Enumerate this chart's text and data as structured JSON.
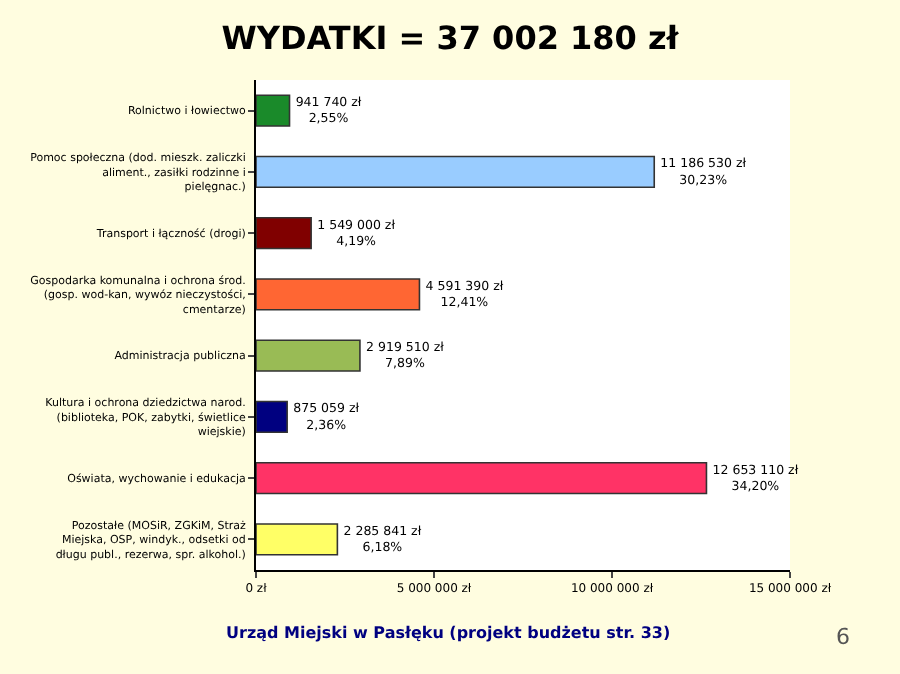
{
  "chart_data": {
    "type": "bar",
    "orientation": "horizontal",
    "title": "WYDATKI = 37 002 180 zł",
    "categories": [
      "Rolnictwo i łowiectwo",
      "Pomoc społeczna (dod. mieszk. zaliczki aliment., zasiłki rodzinne i pielęgnac.)",
      "Transport i łączność (drogi)",
      "Gospodarka komunalna i ochrona środ. (gosp. wod-kan, wywóz nieczystości, cmentarze)",
      "Administracja publiczna",
      "Kultura i ochrona dziedzictwa narod. (biblioteka, POK, zabytki, świetlice wiejskie)",
      "Oświata, wychowanie i edukacja",
      "Pozostałe (MOSiR, ZGKiM, Straż Miejska, OSP, windyk., odsetki od długu publ., rezerwa, spr. alkohol.)"
    ],
    "values": [
      941740,
      11186530,
      1549000,
      4591390,
      2919510,
      875059,
      12653110,
      2285841
    ],
    "colors": [
      "#1a8a2a",
      "#99ccff",
      "#800000",
      "#ff6633",
      "#99bb55",
      "#000080",
      "#ff3366",
      "#ffff66"
    ],
    "value_labels": [
      "941 740 zł\n2,55%",
      "11 186 530 zł\n30,23%",
      "1 549 000 zł\n4,19%",
      "4 591 390 zł\n12,41%",
      "2 919 510 zł\n7,89%",
      "875 059 zł\n2,36%",
      "12 653 110 zł\n34,20%",
      "2 285 841 zł\n6,18%"
    ],
    "xlim": [
      0,
      15000000
    ],
    "xticks": [
      {
        "value": 0,
        "label": "0 zł"
      },
      {
        "value": 5000000,
        "label": "5 000 000 zł"
      },
      {
        "value": 10000000,
        "label": "10 000 000 zł"
      },
      {
        "value": 15000000,
        "label": "15 000 000 zł"
      }
    ],
    "legend": false,
    "annotations": [
      "Urząd Miejski w Pasłęku (projekt budżetu str. 33)",
      "6"
    ]
  }
}
